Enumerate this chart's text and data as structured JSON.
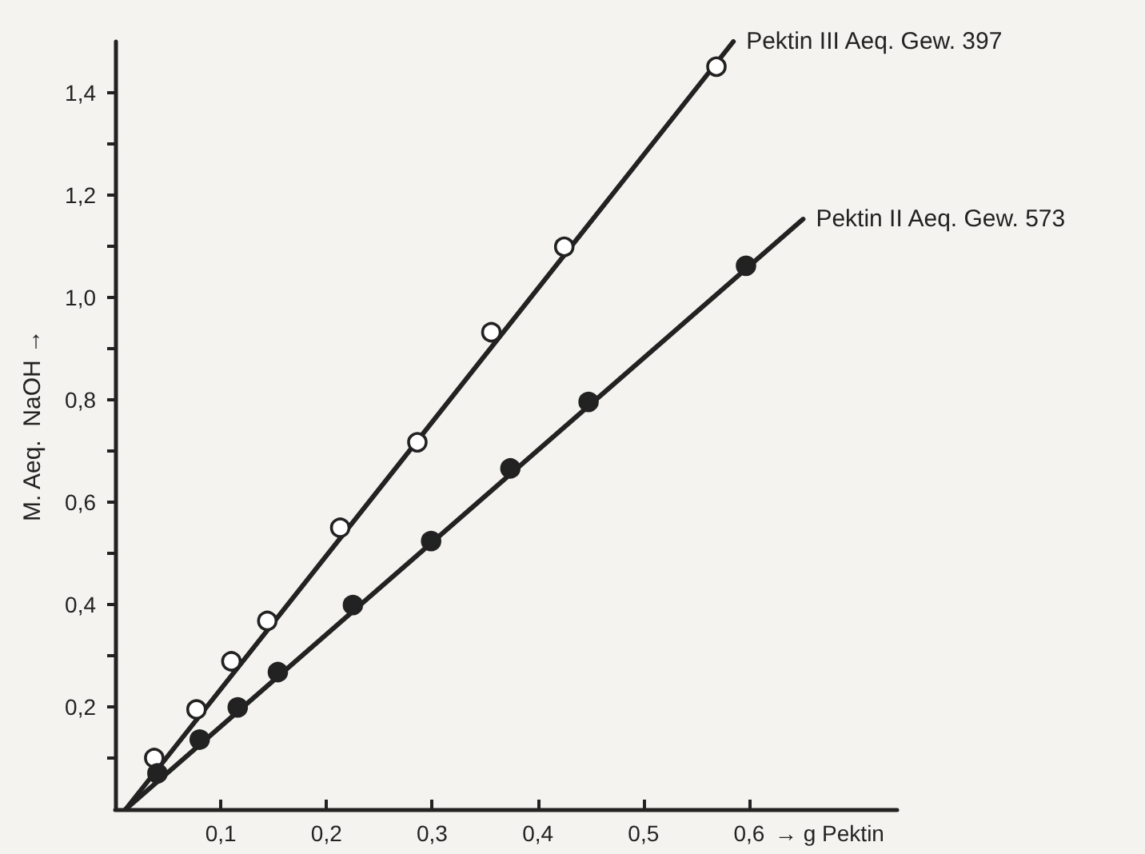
{
  "chart_data": {
    "type": "scatter",
    "xlabel": "→ g Pektin",
    "ylabel": "M. Aeq.  NaOH →",
    "xlim": [
      0,
      0.74
    ],
    "ylim": [
      0,
      1.5
    ],
    "xticks": [
      {
        "value": 0.1,
        "label": "0,1"
      },
      {
        "value": 0.2,
        "label": "0,2"
      },
      {
        "value": 0.3,
        "label": "0,3"
      },
      {
        "value": 0.4,
        "label": "0,4"
      },
      {
        "value": 0.5,
        "label": "0,5"
      },
      {
        "value": 0.6,
        "label": "0,6"
      }
    ],
    "yticks": [
      {
        "value": 0.1,
        "label": null
      },
      {
        "value": 0.2,
        "label": "0,2"
      },
      {
        "value": 0.3,
        "label": null
      },
      {
        "value": 0.4,
        "label": "0,4"
      },
      {
        "value": 0.5,
        "label": null
      },
      {
        "value": 0.6,
        "label": "0,6"
      },
      {
        "value": 0.7,
        "label": null
      },
      {
        "value": 0.8,
        "label": "0,8"
      },
      {
        "value": 0.9,
        "label": null
      },
      {
        "value": 1.0,
        "label": "1,0"
      },
      {
        "value": 1.1,
        "label": null
      },
      {
        "value": 1.2,
        "label": "1,2"
      },
      {
        "value": 1.3,
        "label": null
      },
      {
        "value": 1.4,
        "label": "1,4"
      }
    ],
    "grid": false,
    "legend": false,
    "series": [
      {
        "name": "Pektin III Aeq. Gew. 397",
        "type": "line",
        "marker": "none",
        "line_style": "solid",
        "color": "#222222",
        "x": [
          0.01,
          0.585
        ],
        "values": [
          0,
          1.5
        ]
      },
      {
        "type": "scatter",
        "marker": "circle",
        "color": "#ffffff",
        "x": [
          0.037,
          0.077,
          0.11,
          0.144,
          0.213,
          0.286,
          0.356,
          0.425,
          0.569
        ],
        "values": [
          0.1,
          0.195,
          0.289,
          0.368,
          0.55,
          0.717,
          0.932,
          1.099,
          1.451
        ]
      },
      {
        "name": "Pektin II Aeq. Gew. 573",
        "type": "line",
        "marker": "none",
        "line_style": "solid",
        "color": "#222222",
        "x": [
          0.01,
          0.651
        ],
        "values": [
          0,
          1.153
        ]
      },
      {
        "type": "scatter",
        "marker": "circle",
        "color": "#222222",
        "x": [
          0.04,
          0.08,
          0.116,
          0.154,
          0.225,
          0.299,
          0.374,
          0.448,
          0.597
        ],
        "values": [
          0.07,
          0.136,
          0.199,
          0.268,
          0.399,
          0.524,
          0.666,
          0.796,
          1.062
        ]
      }
    ]
  }
}
